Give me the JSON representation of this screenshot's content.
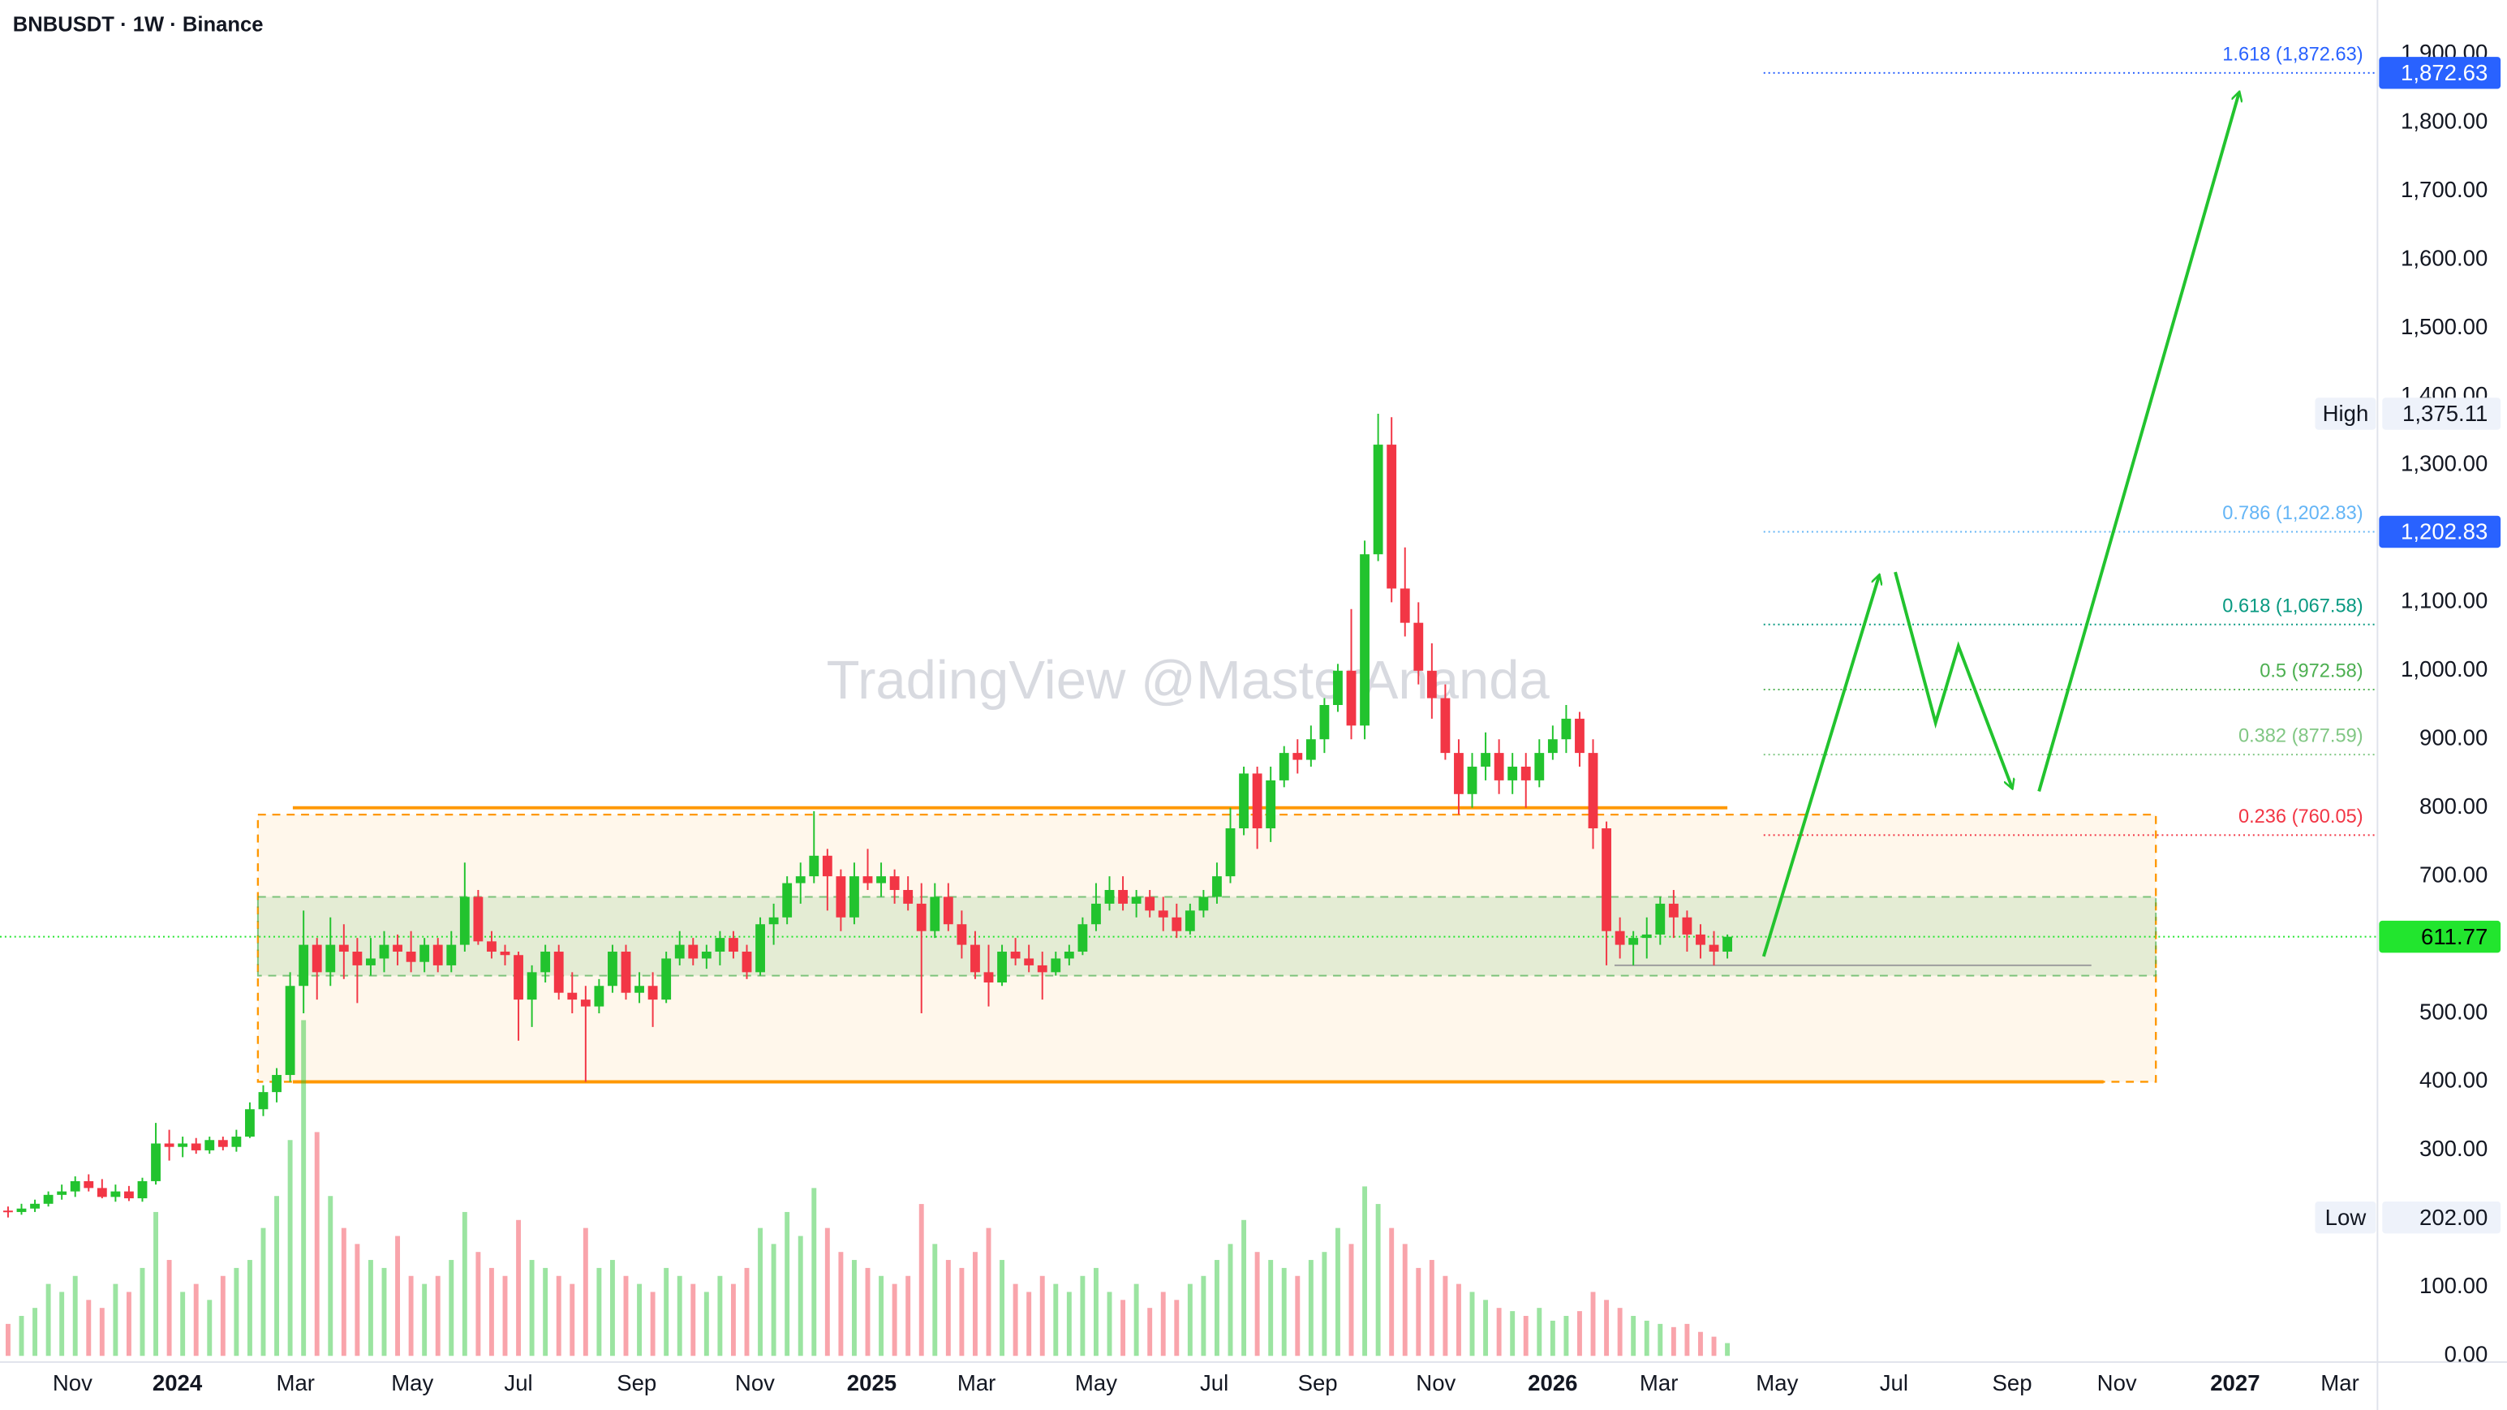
{
  "title": "BNBUSDT · 1W · Binance",
  "watermark": "TradingView @MasterAnanda",
  "chart_data": {
    "type": "candlestick",
    "up_color": "#22c32e",
    "down_color": "#f23645",
    "candles": [
      [
        212,
        218,
        202,
        210
      ],
      [
        210,
        222,
        206,
        215
      ],
      [
        215,
        228,
        210,
        222
      ],
      [
        222,
        240,
        218,
        235
      ],
      [
        235,
        250,
        228,
        240
      ],
      [
        240,
        262,
        232,
        255
      ],
      [
        255,
        265,
        240,
        245
      ],
      [
        245,
        258,
        230,
        232
      ],
      [
        232,
        250,
        225,
        240
      ],
      [
        240,
        248,
        226,
        230
      ],
      [
        230,
        260,
        225,
        255
      ],
      [
        255,
        340,
        250,
        310
      ],
      [
        310,
        330,
        285,
        305
      ],
      [
        305,
        320,
        290,
        310
      ],
      [
        310,
        318,
        295,
        300
      ],
      [
        300,
        320,
        295,
        315
      ],
      [
        315,
        320,
        300,
        305
      ],
      [
        305,
        330,
        298,
        320
      ],
      [
        320,
        370,
        318,
        360
      ],
      [
        360,
        395,
        350,
        385
      ],
      [
        385,
        420,
        370,
        410
      ],
      [
        410,
        560,
        400,
        540
      ],
      [
        540,
        650,
        500,
        600
      ],
      [
        600,
        610,
        520,
        560
      ],
      [
        560,
        640,
        540,
        600
      ],
      [
        600,
        630,
        550,
        590
      ],
      [
        590,
        610,
        515,
        570
      ],
      [
        570,
        610,
        555,
        580
      ],
      [
        580,
        620,
        560,
        600
      ],
      [
        600,
        615,
        570,
        590
      ],
      [
        590,
        620,
        560,
        575
      ],
      [
        575,
        610,
        560,
        600
      ],
      [
        600,
        610,
        560,
        570
      ],
      [
        570,
        620,
        560,
        600
      ],
      [
        600,
        720,
        590,
        670
      ],
      [
        670,
        680,
        600,
        605
      ],
      [
        605,
        620,
        580,
        590
      ],
      [
        590,
        600,
        570,
        585
      ],
      [
        585,
        590,
        460,
        520
      ],
      [
        520,
        570,
        480,
        560
      ],
      [
        560,
        600,
        545,
        590
      ],
      [
        590,
        600,
        520,
        530
      ],
      [
        530,
        560,
        500,
        520
      ],
      [
        520,
        540,
        400,
        510
      ],
      [
        510,
        550,
        500,
        540
      ],
      [
        540,
        600,
        530,
        590
      ],
      [
        590,
        600,
        520,
        530
      ],
      [
        530,
        560,
        515,
        540
      ],
      [
        540,
        560,
        480,
        520
      ],
      [
        520,
        590,
        515,
        580
      ],
      [
        580,
        620,
        570,
        600
      ],
      [
        600,
        610,
        570,
        580
      ],
      [
        580,
        600,
        565,
        590
      ],
      [
        590,
        620,
        570,
        610
      ],
      [
        610,
        620,
        580,
        590
      ],
      [
        590,
        600,
        550,
        560
      ],
      [
        560,
        640,
        555,
        630
      ],
      [
        630,
        660,
        600,
        640
      ],
      [
        640,
        700,
        630,
        690
      ],
      [
        690,
        720,
        660,
        700
      ],
      [
        700,
        795,
        690,
        730
      ],
      [
        730,
        740,
        650,
        700
      ],
      [
        700,
        710,
        620,
        640
      ],
      [
        640,
        720,
        630,
        700
      ],
      [
        700,
        740,
        680,
        690
      ],
      [
        690,
        720,
        670,
        700
      ],
      [
        700,
        710,
        660,
        680
      ],
      [
        680,
        700,
        650,
        660
      ],
      [
        660,
        690,
        500,
        620
      ],
      [
        620,
        690,
        610,
        670
      ],
      [
        670,
        690,
        620,
        630
      ],
      [
        630,
        650,
        580,
        600
      ],
      [
        600,
        620,
        550,
        560
      ],
      [
        560,
        600,
        510,
        545
      ],
      [
        545,
        600,
        540,
        590
      ],
      [
        590,
        610,
        570,
        580
      ],
      [
        580,
        600,
        560,
        570
      ],
      [
        570,
        590,
        520,
        560
      ],
      [
        560,
        590,
        555,
        580
      ],
      [
        580,
        600,
        570,
        590
      ],
      [
        590,
        640,
        585,
        630
      ],
      [
        630,
        690,
        620,
        660
      ],
      [
        660,
        700,
        650,
        680
      ],
      [
        680,
        700,
        650,
        660
      ],
      [
        660,
        680,
        640,
        670
      ],
      [
        670,
        680,
        640,
        650
      ],
      [
        650,
        670,
        620,
        640
      ],
      [
        640,
        660,
        610,
        620
      ],
      [
        620,
        660,
        615,
        650
      ],
      [
        650,
        680,
        640,
        670
      ],
      [
        670,
        720,
        660,
        700
      ],
      [
        700,
        800,
        690,
        770
      ],
      [
        770,
        860,
        760,
        850
      ],
      [
        850,
        860,
        740,
        770
      ],
      [
        770,
        860,
        750,
        840
      ],
      [
        840,
        890,
        830,
        880
      ],
      [
        880,
        900,
        850,
        870
      ],
      [
        870,
        920,
        860,
        900
      ],
      [
        900,
        960,
        880,
        950
      ],
      [
        950,
        1010,
        940,
        1000
      ],
      [
        1000,
        1090,
        900,
        920
      ],
      [
        920,
        1190,
        900,
        1170
      ],
      [
        1170,
        1375.11,
        1160,
        1330
      ],
      [
        1330,
        1370,
        1100,
        1120
      ],
      [
        1120,
        1180,
        1050,
        1070
      ],
      [
        1070,
        1100,
        980,
        1000
      ],
      [
        1000,
        1040,
        930,
        960
      ],
      [
        960,
        980,
        870,
        880
      ],
      [
        880,
        900,
        790,
        820
      ],
      [
        820,
        880,
        800,
        860
      ],
      [
        860,
        910,
        840,
        880
      ],
      [
        880,
        900,
        820,
        840
      ],
      [
        840,
        880,
        820,
        860
      ],
      [
        860,
        880,
        800,
        840
      ],
      [
        840,
        900,
        830,
        880
      ],
      [
        880,
        920,
        870,
        900
      ],
      [
        900,
        950,
        880,
        930
      ],
      [
        930,
        940,
        860,
        880
      ],
      [
        880,
        900,
        740,
        770
      ],
      [
        770,
        780,
        570,
        620
      ],
      [
        620,
        640,
        580,
        600
      ],
      [
        600,
        620,
        570,
        610
      ],
      [
        610,
        640,
        580,
        615
      ],
      [
        615,
        670,
        600,
        660
      ],
      [
        660,
        680,
        610,
        640
      ],
      [
        640,
        650,
        590,
        615
      ],
      [
        615,
        630,
        580,
        600
      ],
      [
        600,
        620,
        570,
        590
      ],
      [
        590,
        615,
        580,
        611.77
      ]
    ],
    "volume": [
      20,
      25,
      30,
      45,
      40,
      50,
      35,
      30,
      45,
      40,
      55,
      90,
      60,
      40,
      45,
      35,
      50,
      55,
      60,
      80,
      100,
      135,
      210,
      140,
      100,
      80,
      70,
      60,
      55,
      75,
      50,
      45,
      50,
      60,
      90,
      65,
      55,
      50,
      85,
      60,
      55,
      50,
      45,
      80,
      55,
      60,
      50,
      45,
      40,
      55,
      50,
      45,
      40,
      50,
      45,
      55,
      80,
      70,
      90,
      75,
      105,
      80,
      65,
      60,
      55,
      50,
      45,
      50,
      95,
      70,
      60,
      55,
      65,
      80,
      60,
      45,
      40,
      50,
      45,
      40,
      50,
      55,
      40,
      35,
      45,
      30,
      40,
      35,
      45,
      50,
      60,
      70,
      85,
      65,
      60,
      55,
      50,
      60,
      65,
      80,
      70,
      106,
      95,
      80,
      70,
      55,
      60,
      50,
      45,
      40,
      35,
      30,
      28,
      25,
      30,
      22,
      25,
      28,
      40,
      35,
      30,
      25,
      22,
      20,
      18,
      20,
      15,
      12,
      8
    ],
    "xlim": [
      -0.6,
      176.4
    ],
    "xticks": [
      {
        "value": 4.8,
        "label": "Nov"
      },
      {
        "value": 12.6,
        "label": "2024"
      },
      {
        "value": 21.4,
        "label": "Mar"
      },
      {
        "value": 30.1,
        "label": "May"
      },
      {
        "value": 38,
        "label": "Jul"
      },
      {
        "value": 46.8,
        "label": "Sep"
      },
      {
        "value": 55.6,
        "label": "Nov"
      },
      {
        "value": 64.3,
        "label": "2025"
      },
      {
        "value": 72.1,
        "label": "Mar"
      },
      {
        "value": 81,
        "label": "May"
      },
      {
        "value": 89.8,
        "label": "Jul"
      },
      {
        "value": 97.5,
        "label": "Sep"
      },
      {
        "value": 106.3,
        "label": "Nov"
      },
      {
        "value": 115,
        "label": "2026"
      },
      {
        "value": 122.9,
        "label": "Mar"
      },
      {
        "value": 131.7,
        "label": "May"
      },
      {
        "value": 140.4,
        "label": "Jul"
      },
      {
        "value": 149.2,
        "label": "Sep"
      },
      {
        "value": 157,
        "label": "Nov"
      },
      {
        "value": 165.8,
        "label": "2027"
      },
      {
        "value": 173.6,
        "label": "Mar"
      }
    ],
    "ylim": [
      -9,
      1979
    ],
    "yticks": [
      {
        "value": 0,
        "label": "0.00"
      },
      {
        "value": 100,
        "label": "100.00"
      },
      {
        "value": 200,
        "label": "200.00"
      },
      {
        "value": 300,
        "label": "300.00"
      },
      {
        "value": 400,
        "label": "400.00"
      },
      {
        "value": 500,
        "label": "500.00"
      },
      {
        "value": 600,
        "label": "600.00"
      },
      {
        "value": 700,
        "label": "700.00"
      },
      {
        "value": 800,
        "label": "800.00"
      },
      {
        "value": 900,
        "label": "900.00"
      },
      {
        "value": 1000,
        "label": "1,000.00"
      },
      {
        "value": 1100,
        "label": "1,100.00"
      },
      {
        "value": 1200,
        "label": "1,200.00"
      },
      {
        "value": 1300,
        "label": "1,300.00"
      },
      {
        "value": 1400,
        "label": "1,400.00"
      },
      {
        "value": 1500,
        "label": "1,500.00"
      },
      {
        "value": 1600,
        "label": "1,600.00"
      },
      {
        "value": 1700,
        "label": "1,700.00"
      },
      {
        "value": 1800,
        "label": "1,800.00"
      },
      {
        "value": 1900,
        "label": "1,900.00"
      }
    ],
    "grid": false,
    "zones": [
      {
        "y": [
          400,
          790
        ],
        "x": [
          18.6,
          159.9
        ],
        "color": "#ff9800"
      },
      {
        "y": [
          555,
          670
        ],
        "x": [
          18.6,
          159.9
        ],
        "color": "#4caf50"
      }
    ],
    "levels": [
      {
        "value": 800,
        "x": [
          21.2,
          128
        ],
        "color": "#ff9800"
      },
      {
        "value": 400,
        "x": [
          21.2,
          156
        ],
        "color": "#ff9800"
      },
      {
        "value": 570,
        "x": [
          119.6,
          155.1
        ],
        "color": "#9e9e9e"
      }
    ],
    "fib": [
      {
        "label": "1.618 (1,872.63)",
        "value": 1872.63,
        "color": "#2962ff"
      },
      {
        "label": "0.786 (1,202.83)",
        "value": 1202.83,
        "color": "#64b5f6"
      },
      {
        "label": "0.618 (1,067.58)",
        "value": 1067.58,
        "color": "#089981"
      },
      {
        "label": "0.5 (972.58)",
        "value": 972.58,
        "color": "#4caf50"
      },
      {
        "label": "0.382 (877.59)",
        "value": 877.59,
        "color": "#81c784"
      },
      {
        "label": "0.236 (760.05)",
        "value": 760.05,
        "color": "#f23645"
      }
    ],
    "fib_x": 130.7,
    "projection": {
      "color": "#22c32e",
      "arrows": [
        {
          "x": [
            130.7,
            139.3
          ],
          "y": [
            583,
            1139
          ]
        },
        {
          "x": [
            140.5,
            143.5,
            145.2,
            149.2
          ],
          "y": [
            1144,
            924,
            1036,
            829
          ]
        },
        {
          "x": [
            151.2,
            166.1
          ],
          "y": [
            824,
            1844
          ]
        }
      ]
    },
    "price_tags": [
      {
        "label": "1,872.63",
        "value": 1872.63,
        "color": "#2962ff",
        "text_color": "#ffffff"
      },
      {
        "label": "1,202.83",
        "value": 1202.83,
        "color": "#2962ff",
        "text_color": "#ffffff"
      },
      {
        "label": "611.77",
        "value": 611.77,
        "color": "#22e52e",
        "text_color": "#000000"
      }
    ],
    "extremes": [
      {
        "name": "High",
        "label": "1,375.11",
        "value": 1375.11
      },
      {
        "name": "Low",
        "label": "202.00",
        "value": 202
      }
    ]
  }
}
